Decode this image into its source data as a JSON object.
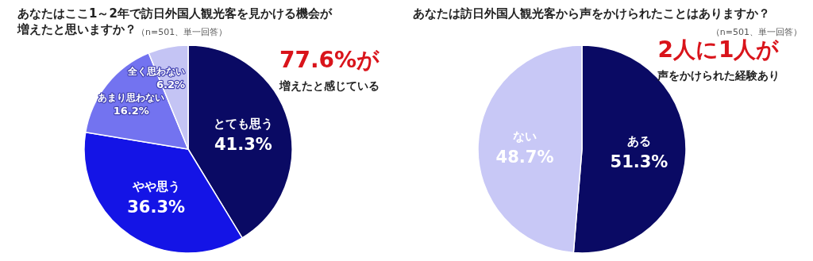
{
  "chart_data": [
    {
      "type": "pie",
      "title": "あなたはここ1～2年で訪日外国人観光客を見かける機会が増えたと思いますか？",
      "subtitle": "（n=501、単一回答）",
      "categories": [
        "とても思う",
        "やや思う",
        "あまり思わない",
        "全く思わない"
      ],
      "values": [
        41.3,
        36.3,
        16.2,
        6.2
      ],
      "colors": [
        "#0a0a64",
        "#1414e6",
        "#7373f0",
        "#c4c4f4"
      ],
      "value_labels": [
        "41.3%",
        "36.3%",
        "16.2%",
        "6.2%"
      ],
      "annotations": [
        "77.6%が",
        "増えたと感じている"
      ]
    },
    {
      "type": "pie",
      "title": "あなたは訪日外国人観光客から声をかけられたことはありますか？",
      "subtitle": "（n=501、単一回答）",
      "categories": [
        "ある",
        "ない"
      ],
      "values": [
        51.3,
        48.7
      ],
      "colors": [
        "#0a0a64",
        "#c8c8f6"
      ],
      "value_labels": [
        "51.3%",
        "48.7%"
      ],
      "annotations": [
        "2人に1人が",
        "声をかけられた経験あり"
      ]
    }
  ]
}
